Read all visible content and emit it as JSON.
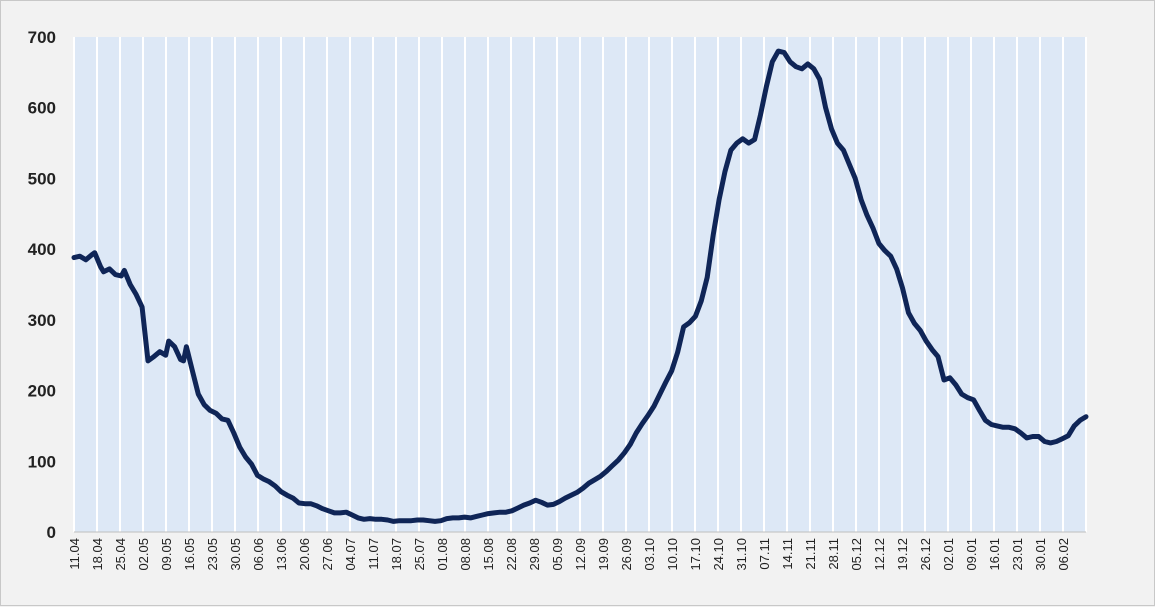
{
  "chart_data": {
    "type": "line",
    "title": "",
    "xlabel": "",
    "ylabel": "",
    "ylim": [
      0,
      700
    ],
    "y_ticks": [
      0,
      100,
      200,
      300,
      400,
      500,
      600,
      700
    ],
    "y_tick_labels": [
      "0",
      "100",
      "200",
      "300",
      "400",
      "500",
      "600",
      "700"
    ],
    "x_tick_labels": [
      "11.04",
      "18.04",
      "25.04",
      "02.05",
      "09.05",
      "16.05",
      "23.05",
      "30.05",
      "06.06",
      "13.06",
      "20.06",
      "27.06",
      "04.07",
      "11.07",
      "18.07",
      "25.07",
      "01.08",
      "08.08",
      "15.08",
      "22.08",
      "29.08",
      "05.09",
      "12.09",
      "19.09",
      "26.09",
      "03.10",
      "10.10",
      "17.10",
      "24.10",
      "31.10",
      "07.11",
      "14.11",
      "21.11",
      "28.11",
      "05.12",
      "12.12",
      "19.12",
      "26.12",
      "02.01",
      "09.01",
      "16.01",
      "23.01",
      "30.01",
      "06.02"
    ],
    "grid": "vertical",
    "legend": "none",
    "colors": {
      "line": "#0f2557",
      "plot_background": "#dde8f6",
      "grid": "#ffffff"
    },
    "series": [
      {
        "values": [
          [
            0,
            388
          ],
          [
            2,
            390
          ],
          [
            4,
            385
          ],
          [
            6,
            392
          ],
          [
            7,
            395
          ],
          [
            9,
            375
          ],
          [
            10,
            368
          ],
          [
            12,
            372
          ],
          [
            14,
            364
          ],
          [
            16,
            362
          ],
          [
            17,
            370
          ],
          [
            19,
            350
          ],
          [
            21,
            336
          ],
          [
            23,
            318
          ],
          [
            25,
            242
          ],
          [
            27,
            248
          ],
          [
            29,
            255
          ],
          [
            31,
            250
          ],
          [
            32,
            270
          ],
          [
            34,
            262
          ],
          [
            36,
            244
          ],
          [
            37,
            242
          ],
          [
            38,
            262
          ],
          [
            40,
            228
          ],
          [
            42,
            195
          ],
          [
            44,
            180
          ],
          [
            46,
            172
          ],
          [
            48,
            168
          ],
          [
            50,
            160
          ],
          [
            52,
            158
          ],
          [
            54,
            140
          ],
          [
            56,
            120
          ],
          [
            58,
            106
          ],
          [
            60,
            96
          ],
          [
            62,
            80
          ],
          [
            64,
            75
          ],
          [
            66,
            71
          ],
          [
            68,
            65
          ],
          [
            70,
            57
          ],
          [
            72,
            52
          ],
          [
            74,
            48
          ],
          [
            76,
            41
          ],
          [
            78,
            40
          ],
          [
            80,
            40
          ],
          [
            82,
            37
          ],
          [
            84,
            33
          ],
          [
            86,
            30
          ],
          [
            88,
            27
          ],
          [
            90,
            27
          ],
          [
            92,
            28
          ],
          [
            94,
            24
          ],
          [
            96,
            20
          ],
          [
            98,
            18
          ],
          [
            100,
            19
          ],
          [
            102,
            18
          ],
          [
            104,
            18
          ],
          [
            106,
            17
          ],
          [
            108,
            15
          ],
          [
            110,
            16
          ],
          [
            112,
            16
          ],
          [
            114,
            16
          ],
          [
            116,
            17
          ],
          [
            118,
            17
          ],
          [
            120,
            16
          ],
          [
            122,
            15
          ],
          [
            124,
            16
          ],
          [
            126,
            19
          ],
          [
            128,
            20
          ],
          [
            130,
            20
          ],
          [
            132,
            21
          ],
          [
            134,
            20
          ],
          [
            136,
            22
          ],
          [
            138,
            24
          ],
          [
            140,
            26
          ],
          [
            142,
            27
          ],
          [
            144,
            28
          ],
          [
            146,
            28
          ],
          [
            148,
            30
          ],
          [
            150,
            34
          ],
          [
            152,
            38
          ],
          [
            154,
            41
          ],
          [
            156,
            45
          ],
          [
            158,
            42
          ],
          [
            160,
            38
          ],
          [
            162,
            39
          ],
          [
            164,
            43
          ],
          [
            166,
            48
          ],
          [
            168,
            52
          ],
          [
            170,
            56
          ],
          [
            172,
            62
          ],
          [
            174,
            69
          ],
          [
            176,
            74
          ],
          [
            178,
            79
          ],
          [
            180,
            86
          ],
          [
            182,
            94
          ],
          [
            184,
            102
          ],
          [
            186,
            112
          ],
          [
            188,
            124
          ],
          [
            190,
            140
          ],
          [
            192,
            153
          ],
          [
            194,
            165
          ],
          [
            196,
            178
          ],
          [
            198,
            195
          ],
          [
            200,
            212
          ],
          [
            202,
            228
          ],
          [
            204,
            254
          ],
          [
            206,
            290
          ],
          [
            208,
            296
          ],
          [
            210,
            305
          ],
          [
            212,
            327
          ],
          [
            214,
            360
          ],
          [
            216,
            420
          ],
          [
            218,
            470
          ],
          [
            220,
            510
          ],
          [
            222,
            540
          ],
          [
            224,
            550
          ],
          [
            226,
            556
          ],
          [
            228,
            550
          ],
          [
            230,
            555
          ],
          [
            232,
            590
          ],
          [
            234,
            630
          ],
          [
            236,
            665
          ],
          [
            238,
            680
          ],
          [
            240,
            678
          ],
          [
            242,
            665
          ],
          [
            244,
            658
          ],
          [
            246,
            655
          ],
          [
            248,
            662
          ],
          [
            250,
            655
          ],
          [
            252,
            640
          ],
          [
            254,
            600
          ],
          [
            256,
            570
          ],
          [
            258,
            550
          ],
          [
            260,
            540
          ],
          [
            262,
            520
          ],
          [
            264,
            500
          ],
          [
            266,
            470
          ],
          [
            268,
            448
          ],
          [
            270,
            430
          ],
          [
            272,
            408
          ],
          [
            274,
            398
          ],
          [
            276,
            390
          ],
          [
            278,
            372
          ],
          [
            280,
            345
          ],
          [
            282,
            310
          ],
          [
            284,
            295
          ],
          [
            286,
            285
          ],
          [
            288,
            270
          ],
          [
            290,
            258
          ],
          [
            292,
            248
          ],
          [
            294,
            215
          ],
          [
            296,
            218
          ],
          [
            298,
            208
          ],
          [
            300,
            195
          ],
          [
            302,
            190
          ],
          [
            304,
            187
          ],
          [
            306,
            172
          ],
          [
            308,
            158
          ],
          [
            310,
            152
          ],
          [
            312,
            150
          ],
          [
            314,
            148
          ],
          [
            316,
            148
          ],
          [
            318,
            146
          ],
          [
            320,
            140
          ],
          [
            322,
            133
          ],
          [
            324,
            135
          ],
          [
            326,
            135
          ],
          [
            328,
            128
          ],
          [
            330,
            126
          ],
          [
            332,
            128
          ],
          [
            334,
            132
          ],
          [
            336,
            136
          ],
          [
            338,
            150
          ],
          [
            340,
            158
          ],
          [
            342,
            163
          ]
        ]
      }
    ]
  }
}
